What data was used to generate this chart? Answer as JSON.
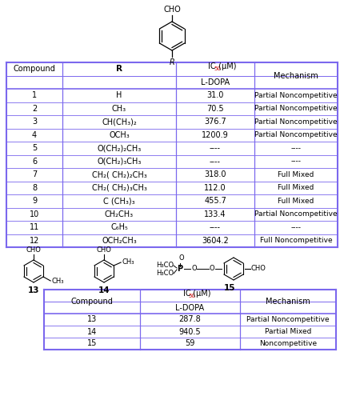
{
  "table1_col1": [
    "1",
    "2",
    "3",
    "4",
    "5",
    "6",
    "7",
    "8",
    "9",
    "10",
    "11",
    "12"
  ],
  "table1_col2": [
    "H",
    "CH₃",
    "CH(CH₃)₂",
    "OCH₃",
    "O(CH₂)₂CH₃",
    "O(CH₂)₃CH₃",
    "CH₂( CH₂)₂CH₃",
    "CH₂( CH₂)₃CH₃",
    "C (CH₃)₃",
    "CH₂CH₃",
    "C₆H₅",
    "OCH₂CH₃"
  ],
  "table1_col3": [
    "31.0",
    "70.5",
    "376.7",
    "1200.9",
    "----",
    "----",
    "318.0",
    "112.0",
    "455.7",
    "133.4",
    "----",
    "3604.2"
  ],
  "table1_col4": [
    "Partial Noncompetitive",
    "Partial Noncompetitive",
    "Partial Noncompetitive",
    "Partial Noncompetitive",
    "----",
    "----",
    "Full Mixed",
    "Full Mixed",
    "Full Mixed",
    "Partial Noncompetitive",
    "----",
    "Full Noncompetitive"
  ],
  "table2_col1": [
    "13",
    "14",
    "15"
  ],
  "table2_col2": [
    "287.8",
    "940.5",
    "59"
  ],
  "table2_col3": [
    "Partial Noncompetitive",
    "Partial Mixed",
    "Noncompetitive"
  ],
  "border_color": "#7B68EE",
  "text_color_black": "#000000",
  "text_color_red": "#CC0000",
  "bg_white": "#ffffff",
  "ring_angles": [
    90,
    30,
    -30,
    -90,
    -150,
    150
  ]
}
